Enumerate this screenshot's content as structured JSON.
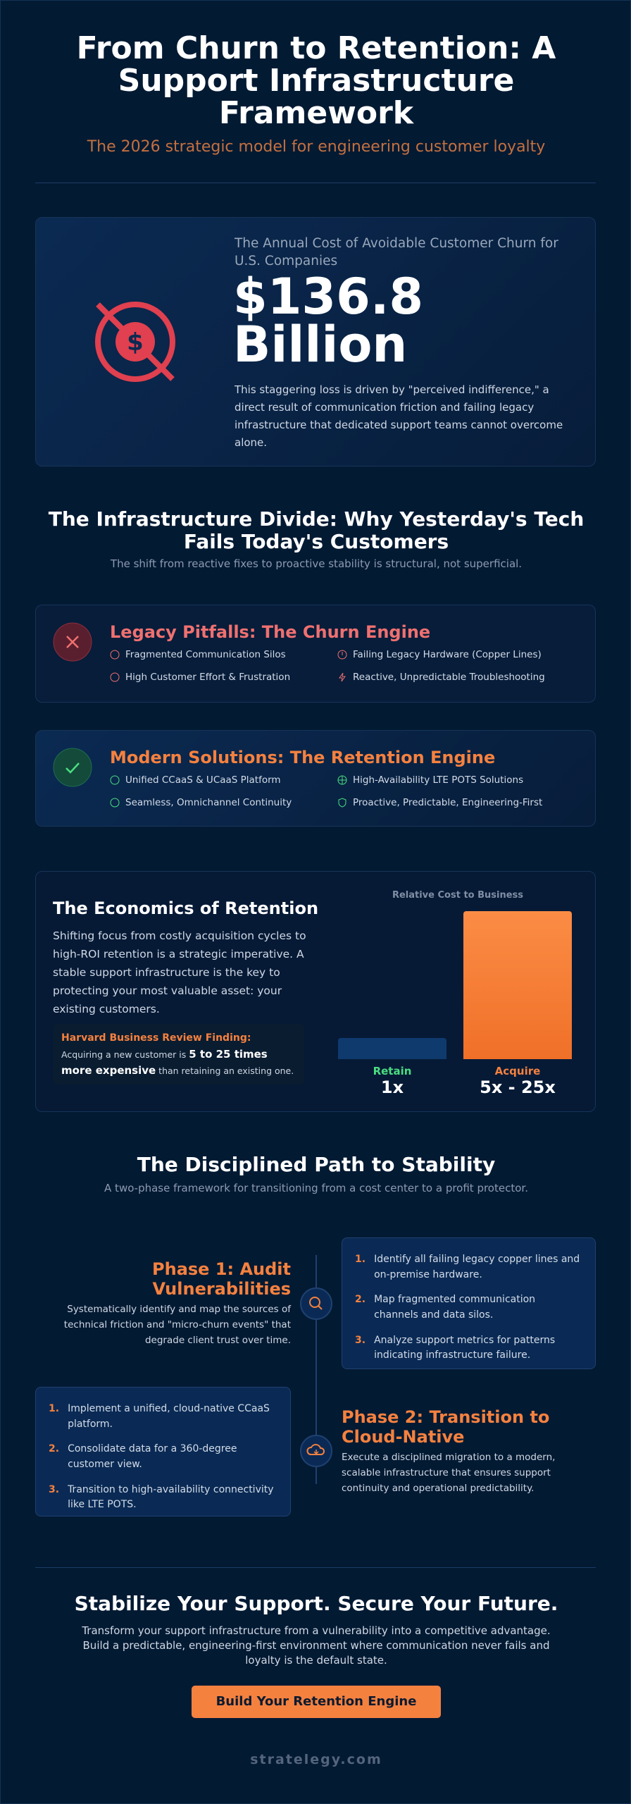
{
  "header": {
    "title": "From Churn to Retention: A Support Infrastructure Framework",
    "subtitle": "The 2026 strategic model for engineering customer loyalty"
  },
  "stat": {
    "label": "The Annual Cost of Avoidable Customer Churn for U.S. Companies",
    "value": "$136.8 Billion",
    "description": "This staggering loss is driven by \"perceived indifference,\" a direct result of communication friction and failing legacy infrastructure that dedicated support teams cannot overcome alone."
  },
  "divide": {
    "title": "The Infrastructure Divide: Why Yesterday's Tech Fails Today's Customers",
    "subtitle": "The shift from reactive fixes to proactive stability is structural, not superficial.",
    "legacy": {
      "title": "Legacy Pitfalls: The Churn Engine",
      "items": [
        "Fragmented Communication Silos",
        "Failing Legacy Hardware (Copper Lines)",
        "High Customer Effort & Frustration",
        "Reactive, Unpredictable Troubleshooting"
      ]
    },
    "modern": {
      "title": "Modern Solutions: The Retention Engine",
      "items": [
        "Unified CCaaS & UCaaS Platform",
        "High-Availability LTE POTS Solutions",
        "Seamless, Omnichannel Continuity",
        "Proactive, Predictable, Engineering-First"
      ]
    }
  },
  "economics": {
    "title": "The Economics of Retention",
    "body": "Shifting focus from costly acquisition cycles to high-ROI retention is a strategic imperative. A stable support infrastructure is the key to protecting your most valuable asset: your existing customers.",
    "finding": {
      "label": "Harvard Business Review Finding:",
      "before": "Acquiring a new customer is",
      "emphasis": "5 to 25 times more expensive",
      "after": "than retaining an existing one."
    },
    "chart": {
      "title": "Relative Cost to Business",
      "bars": [
        {
          "label": "Retain",
          "value_label": "1x"
        },
        {
          "label": "Acquire",
          "value_label": "5x - 25x"
        }
      ]
    }
  },
  "path": {
    "title": "The Disciplined Path to Stability",
    "subtitle": "A two-phase framework for transitioning from a cost center to a profit protector.",
    "phases": [
      {
        "title": "Phase 1: Audit Vulnerabilities",
        "description": "Systematically identify and map the sources of technical friction and \"micro-churn events\" that degrade client trust over time.",
        "steps": [
          {
            "number": "1.",
            "text": "Identify all failing legacy copper lines and on-premise hardware."
          },
          {
            "number": "2.",
            "text": "Map fragmented communication channels and data silos."
          },
          {
            "number": "3.",
            "text": "Analyze support metrics for patterns indicating infrastructure failure."
          }
        ]
      },
      {
        "title": "Phase 2: Transition to Cloud-Native",
        "description": "Execute a disciplined migration to a modern, scalable infrastructure that ensures support continuity and operational predictability.",
        "steps": [
          {
            "number": "1.",
            "text": "Implement a unified, cloud-native CCaaS platform."
          },
          {
            "number": "2.",
            "text": "Consolidate data for a 360-degree customer view."
          },
          {
            "number": "3.",
            "text": "Transition to high-availability connectivity like LTE POTS."
          }
        ]
      }
    ]
  },
  "cta": {
    "title": "Stabilize Your Support. Secure Your Future.",
    "body": "Transform your support infrastructure from a vulnerability into a competitive advantage. Build a predictable, engineering-first environment where communication never fails and loyalty is the default state.",
    "button": "Build Your Retention Engine"
  },
  "footer": "stratelegy.com"
}
